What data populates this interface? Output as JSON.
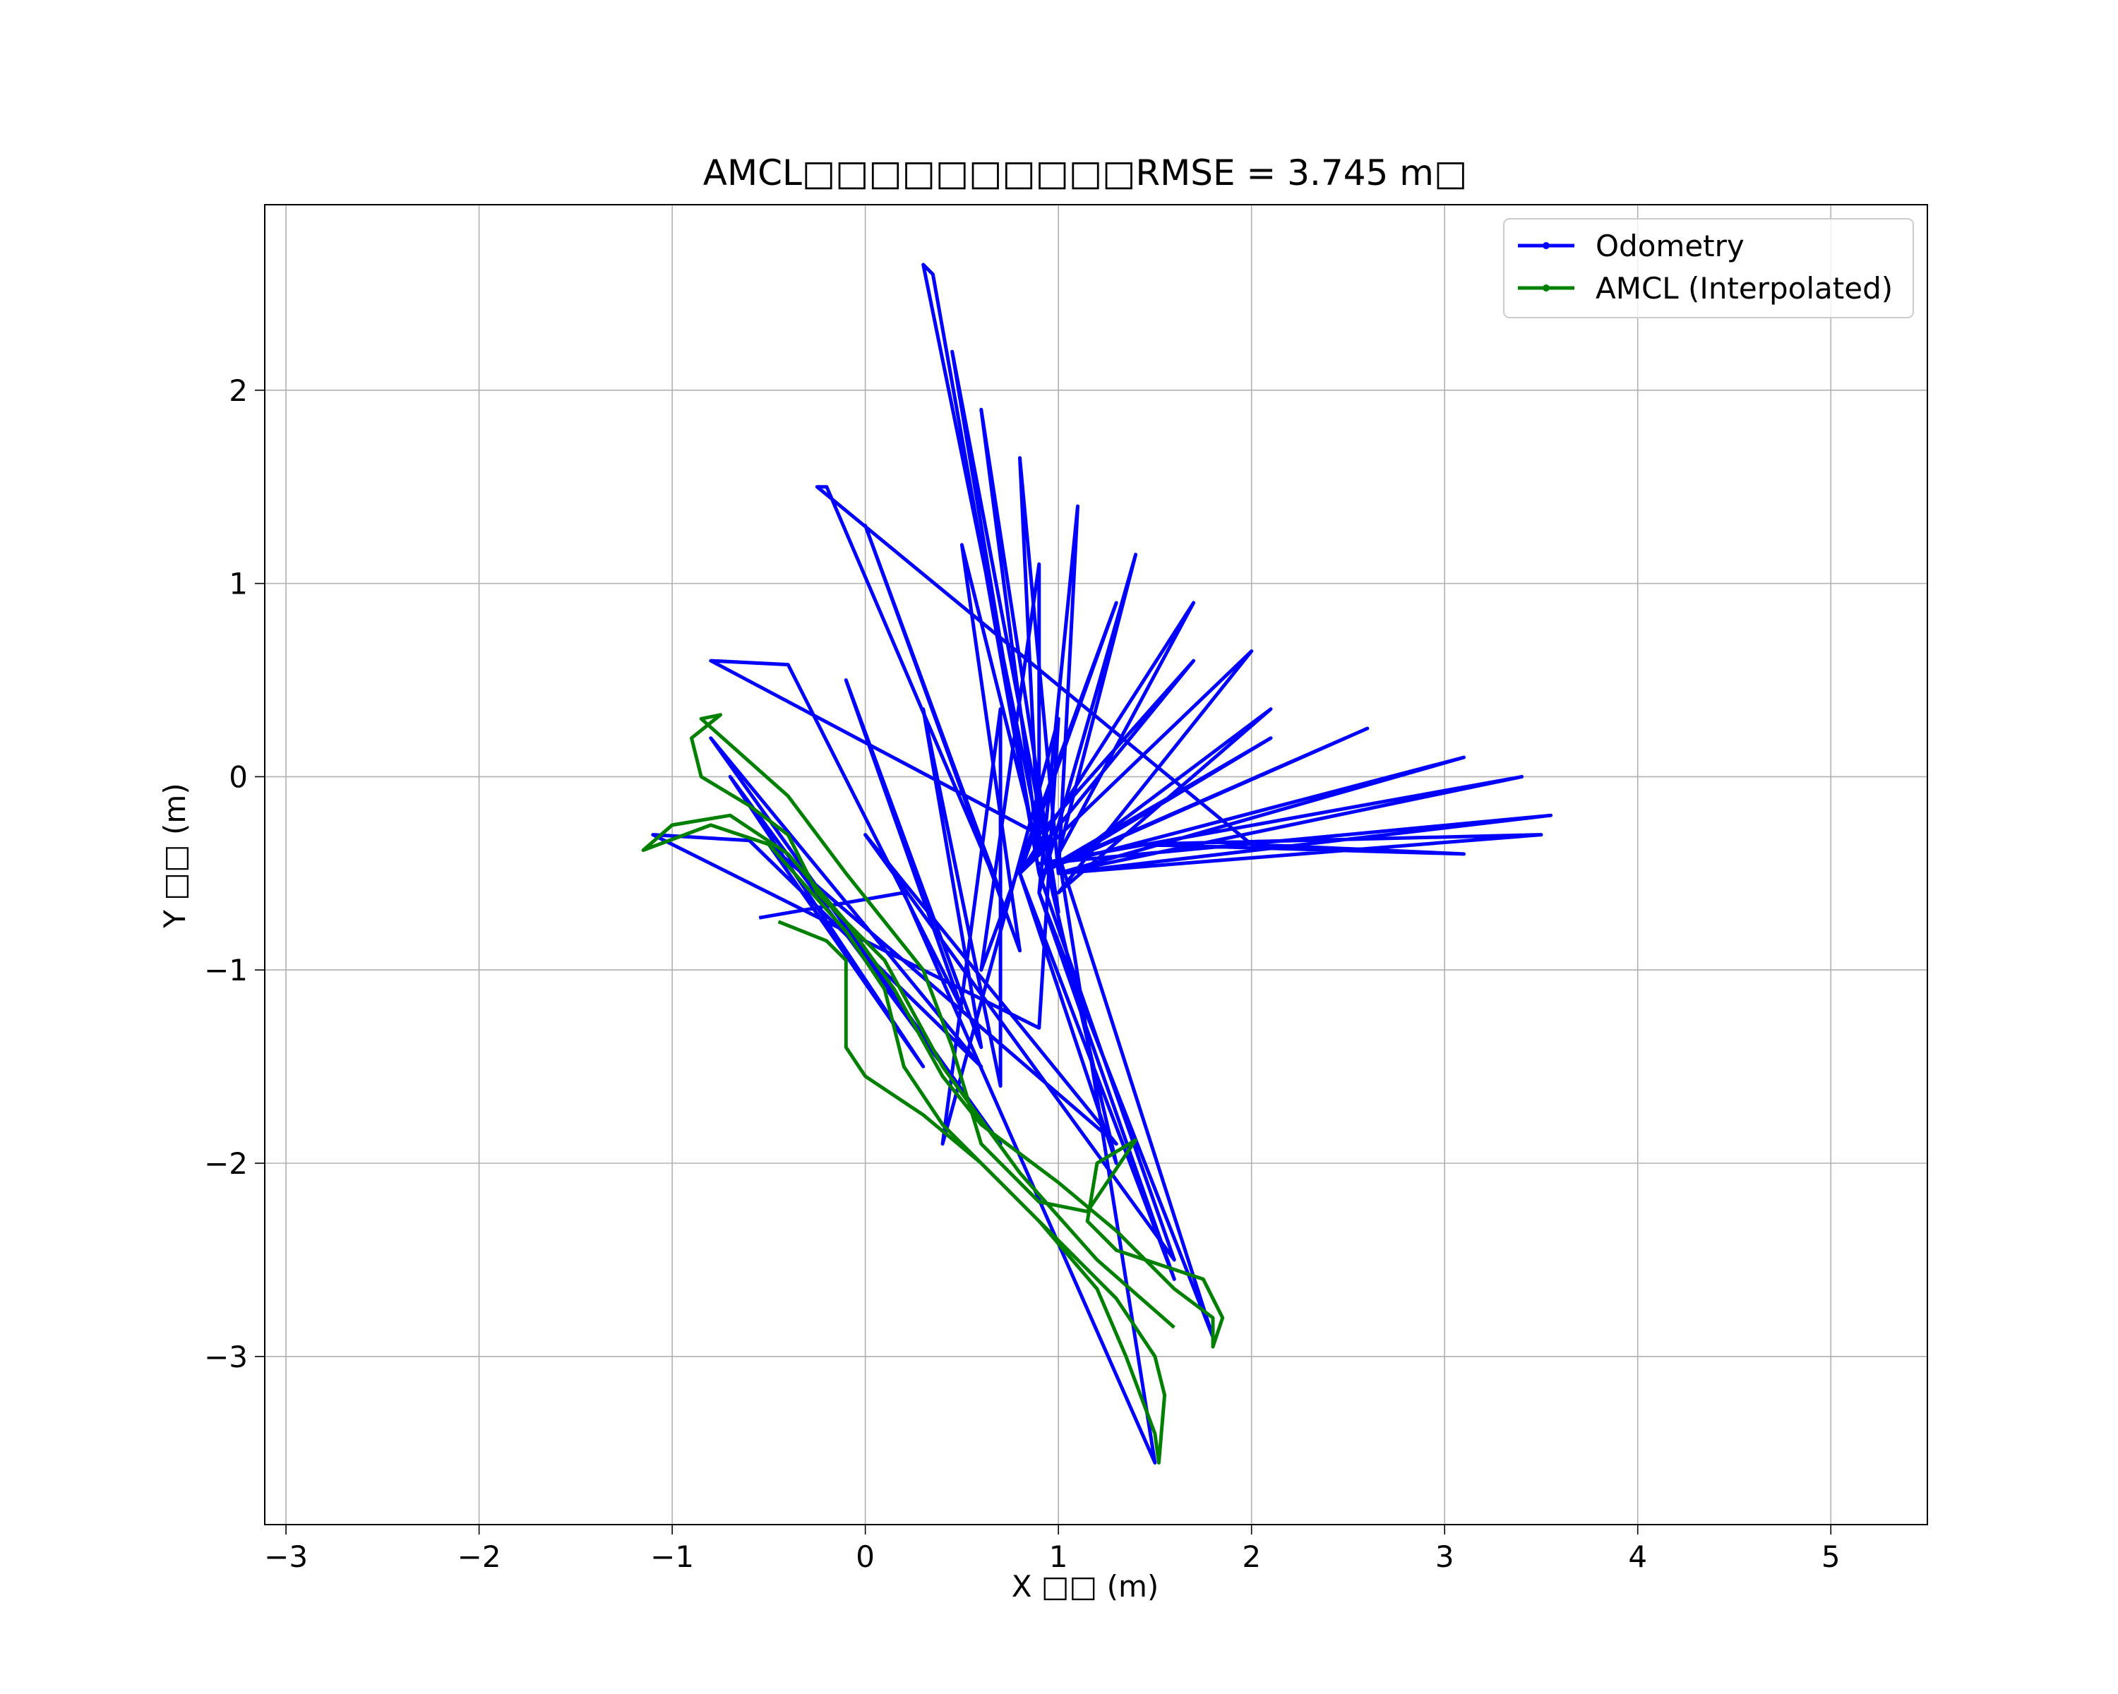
{
  "chart_data": {
    "type": "line",
    "title": "AMCL□□□□□□□□□□RMSE = 3.745 m□",
    "x_label": "X □□ (m)",
    "y_label": "Y □□ (m)",
    "xlim": [
      -3.11,
      5.5
    ],
    "ylim": [
      -3.87,
      2.96
    ],
    "xticks": [
      {
        "value": -3,
        "label": "−3"
      },
      {
        "value": -2,
        "label": "−2"
      },
      {
        "value": -1,
        "label": "−1"
      },
      0,
      1,
      2,
      3,
      4,
      5
    ],
    "yticks": [
      {
        "value": -3,
        "label": "−3"
      },
      {
        "value": -2,
        "label": "−2"
      },
      {
        "value": -1,
        "label": "−1"
      },
      0,
      1,
      2
    ],
    "grid": true,
    "legend": "upper right",
    "series": [
      {
        "name": "Odometry",
        "color": "#0000ff",
        "x": [
          -0.55,
          0.2,
          1.5,
          1.0,
          1.8,
          0.9,
          1.6,
          0.8,
          1.3,
          0.9,
          0.3,
          0.35,
          0.9,
          0.45,
          1.0,
          0.6,
          0.9,
          0.8,
          1.0,
          1.1,
          0.9,
          1.4,
          1.0,
          1.7,
          0.8,
          2.0,
          1.0,
          2.1,
          1.1,
          2.1,
          0.9,
          2.6,
          1.0,
          3.1,
          1.0,
          3.4,
          0.9,
          3.55,
          1.0,
          3.5,
          1.4,
          3.1,
          2.0,
          -0.25,
          -0.2,
          0.7,
          0.0,
          0.8,
          0.5,
          0.9,
          0.9,
          0.6,
          1.3,
          0.8,
          1.7,
          0.9,
          -0.8,
          -0.4,
          0.5,
          -0.1,
          0.6,
          0.3,
          0.7,
          0.7,
          0.4,
          1.0,
          0.9,
          -1.1,
          -0.6,
          0.6,
          -0.8,
          0.7,
          -0.7,
          0.3,
          -0.5,
          1.3,
          0.0,
          1.6,
          0.9
        ],
        "values": [
          -0.73,
          -0.6,
          -3.55,
          -0.4,
          -2.9,
          -0.6,
          -2.6,
          -0.5,
          -2.0,
          -0.3,
          2.65,
          2.6,
          -0.5,
          2.2,
          -0.7,
          1.9,
          -0.4,
          1.65,
          -0.5,
          1.4,
          -0.6,
          1.15,
          -0.4,
          0.9,
          -0.5,
          0.65,
          -0.6,
          0.35,
          -0.4,
          0.2,
          -0.5,
          0.25,
          -0.45,
          0.1,
          -0.5,
          0.0,
          -0.45,
          -0.2,
          -0.5,
          -0.3,
          -0.35,
          -0.4,
          -0.35,
          1.5,
          1.5,
          -0.6,
          1.3,
          -0.9,
          1.2,
          -0.4,
          1.1,
          -1.0,
          0.9,
          -0.5,
          0.6,
          -0.3,
          0.6,
          0.58,
          -1.2,
          0.5,
          -1.4,
          0.35,
          -1.6,
          0.35,
          -1.9,
          0.3,
          -1.3,
          -0.3,
          -0.33,
          -1.5,
          0.2,
          -1.9,
          0.0,
          -1.5,
          -0.35,
          -1.9,
          -0.3,
          -2.5,
          -0.5
        ]
      },
      {
        "name": "AMCL (Interpolated)",
        "color": "#008000",
        "x": [
          -0.45,
          -0.2,
          -0.1,
          -0.1,
          0.0,
          0.3,
          0.6,
          0.9,
          1.2,
          1.35,
          1.5,
          1.52,
          1.55,
          1.5,
          1.3,
          1.0,
          0.7,
          0.4,
          0.2,
          0.1,
          -0.1,
          -0.5,
          -0.8,
          -1.15,
          -1.0,
          -0.7,
          -0.4,
          -0.1,
          0.15,
          0.4,
          0.6,
          1.0,
          1.3,
          1.6,
          1.8,
          1.8,
          1.85,
          1.75,
          1.3,
          1.15,
          1.2,
          1.4,
          1.15,
          0.9,
          0.6,
          0.45,
          0.3,
          -0.1,
          -0.4,
          -0.85,
          -0.75,
          -0.9,
          -0.85,
          -0.6,
          -0.4,
          -0.25,
          0.1,
          0.4,
          0.8,
          1.2,
          1.6
        ],
        "values": [
          -0.75,
          -0.85,
          -0.95,
          -1.4,
          -1.55,
          -1.75,
          -2.0,
          -2.3,
          -2.65,
          -3.0,
          -3.4,
          -3.55,
          -3.2,
          -3.0,
          -2.7,
          -2.4,
          -2.1,
          -1.8,
          -1.5,
          -1.1,
          -0.8,
          -0.35,
          -0.25,
          -0.38,
          -0.25,
          -0.2,
          -0.4,
          -0.75,
          -1.1,
          -1.55,
          -1.8,
          -2.1,
          -2.35,
          -2.65,
          -2.8,
          -2.95,
          -2.8,
          -2.6,
          -2.45,
          -2.3,
          -2.0,
          -1.88,
          -2.25,
          -2.2,
          -1.9,
          -1.4,
          -1.0,
          -0.5,
          -0.1,
          0.3,
          0.32,
          0.2,
          0.0,
          -0.15,
          -0.3,
          -0.6,
          -0.95,
          -1.5,
          -2.05,
          -2.5,
          -2.85
        ]
      }
    ]
  }
}
